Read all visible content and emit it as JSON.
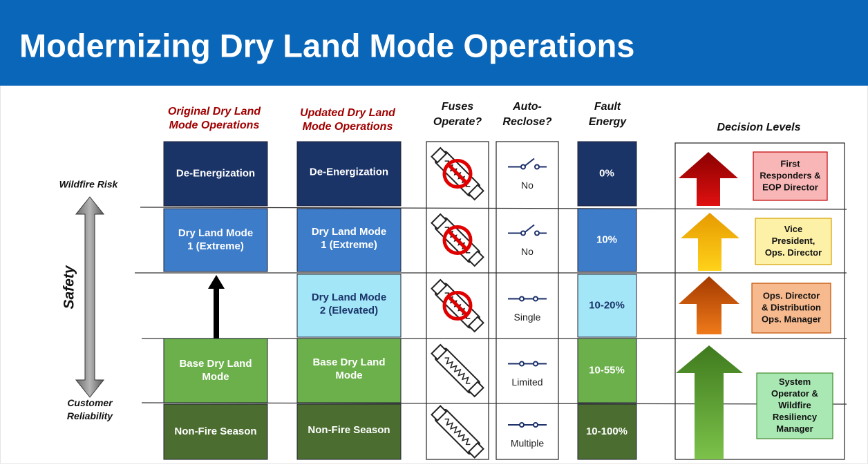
{
  "title": "Modernizing Dry Land Mode Operations",
  "left_axis": {
    "top": "Wildfire Risk",
    "label": "Safety",
    "bottom": [
      "Customer",
      "Reliability"
    ]
  },
  "headers": {
    "original": [
      "Original Dry Land",
      "Mode Operations"
    ],
    "updated": [
      "Updated Dry Land",
      "Mode Operations"
    ],
    "fuses": [
      "Fuses",
      "Operate?"
    ],
    "reclose": [
      "Auto-",
      "Reclose?"
    ],
    "energy": [
      "Fault",
      "Energy"
    ],
    "decision": "Decision Levels"
  },
  "rows": [
    {
      "original": [
        "De-Energization"
      ],
      "updated": [
        "De-Energization"
      ],
      "reclose": "No",
      "energy": "0%"
    },
    {
      "original": [
        "Dry Land Mode",
        "1 (Extreme)"
      ],
      "updated": [
        "Dry Land Mode",
        "1 (Extreme)"
      ],
      "reclose": "No",
      "energy": "10%"
    },
    {
      "updated": [
        "Dry Land Mode",
        "2 (Elevated)"
      ],
      "reclose": "Single",
      "energy": "10-20%"
    },
    {
      "original": [
        "Base Dry Land",
        "Mode"
      ],
      "updated": [
        "Base Dry Land",
        "Mode"
      ],
      "reclose": "Limited",
      "energy": "10-55%"
    },
    {
      "original": [
        "Non-Fire Season"
      ],
      "updated": [
        "Non-Fire Season"
      ],
      "reclose": "Multiple",
      "energy": "10-100%"
    }
  ],
  "decisions": [
    [
      "First",
      "Responders &",
      "EOP Director"
    ],
    [
      "Vice",
      "President,",
      "Ops. Director"
    ],
    [
      "Ops. Director",
      "& Distribution",
      "Ops. Manager"
    ],
    [
      "System",
      "Operator &",
      "Wildfire",
      "Resiliency",
      "Manager"
    ]
  ]
}
